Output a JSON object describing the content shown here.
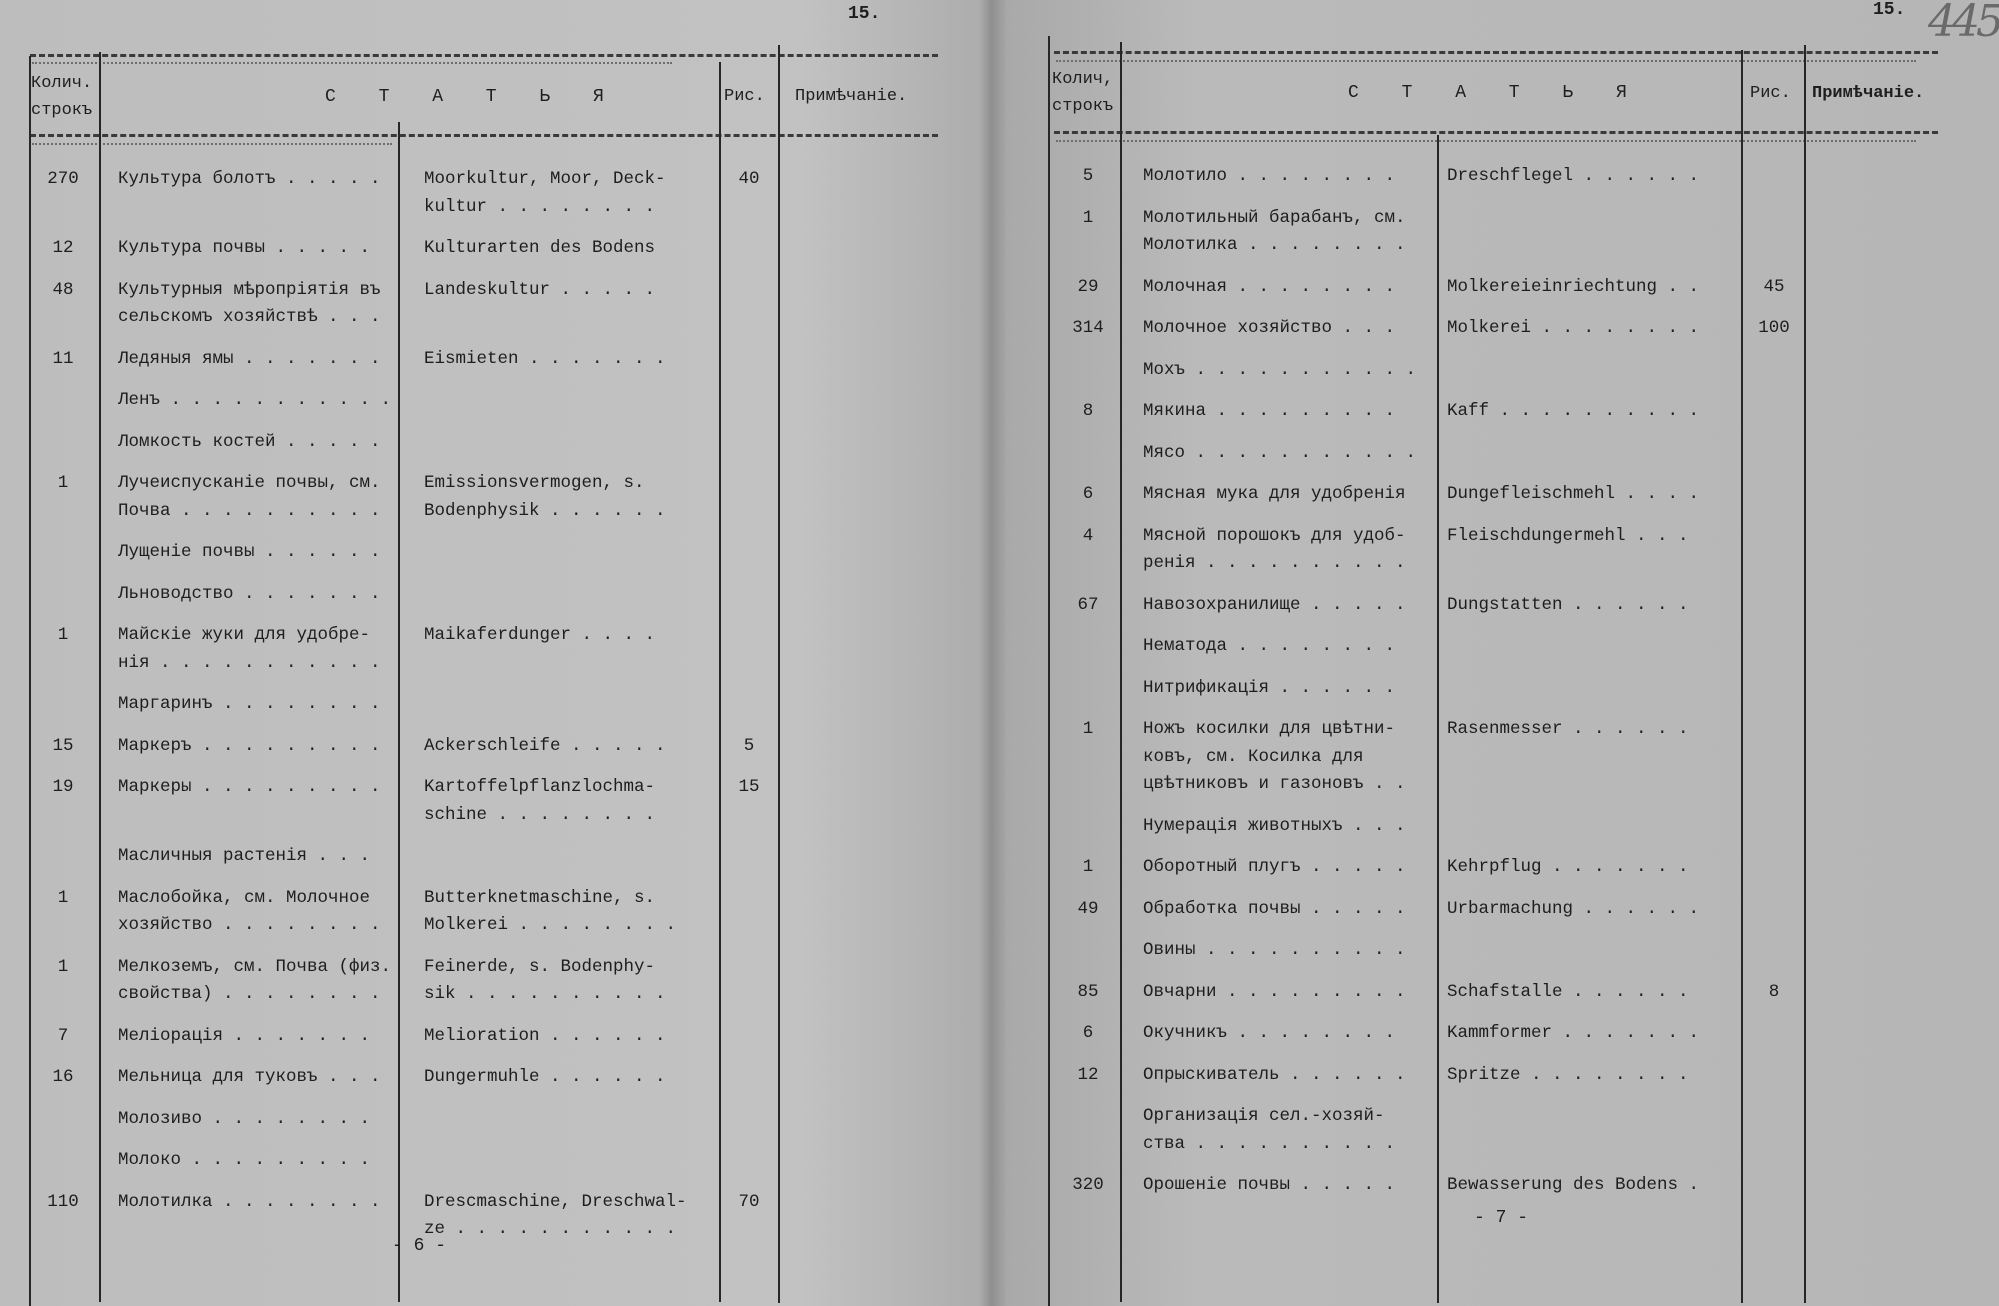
{
  "left_page": {
    "page_number": "15.",
    "footer": "- 6 -",
    "header": {
      "qty": "Колич.",
      "qty2": "строкъ",
      "article": "С Т А Т Ь Я",
      "fig": "Рис.",
      "note": "Примѣчаніе."
    },
    "rows": [
      {
        "qty": "270",
        "ru": "Культура болотъ . . . . .",
        "de": "Moorkultur, Moor, Deck-\nkultur . . . . . . . .",
        "fig": "40"
      },
      {
        "qty": "12",
        "ru": "Культура почвы . . . . .",
        "de": "Kulturarten des Bodens",
        "fig": ""
      },
      {
        "qty": "48",
        "ru": "Культурныя мѣропріятія въ\nсельскомъ хозяйствѣ . . .",
        "de": "Landeskultur . . . . .",
        "fig": ""
      },
      {
        "qty": "11",
        "ru": "Ледяныя ямы . . . . . . .",
        "de": "Eismieten . . . . . . .",
        "fig": ""
      },
      {
        "qty": "",
        "ru": "Ленъ . . . . . . . . . . .",
        "de": "",
        "fig": ""
      },
      {
        "qty": "",
        "ru": "Ломкость костей . . . . .",
        "de": "",
        "fig": ""
      },
      {
        "qty": "1",
        "ru": "Лучеиспусканіе почвы, см.\nПочва . . . . . . . . . .",
        "de": "Emissionsvermogen, s.\nBodenphysik . . . . . .",
        "fig": ""
      },
      {
        "qty": "",
        "ru": "Лущеніе почвы . . . . . .",
        "de": "",
        "fig": ""
      },
      {
        "qty": "",
        "ru": "Льноводство . . . . . . .",
        "de": "",
        "fig": ""
      },
      {
        "qty": "1",
        "ru": "Майскіе жуки для удобре-\nнія . . . . . . . . . . .",
        "de": "Maikaferdunger . . . .",
        "fig": ""
      },
      {
        "qty": "",
        "ru": "Маргаринъ . . . . . . . .",
        "de": "",
        "fig": ""
      },
      {
        "qty": "15",
        "ru": "Маркеръ . . . . . . . . .",
        "de": "Ackerschleife . . . . .",
        "fig": "5"
      },
      {
        "qty": "19",
        "ru": "Маркеры . . . . . . . . .",
        "de": "Kartoffelpflanzlochma-\nschine . . . . . . . .",
        "fig": "15"
      },
      {
        "qty": "",
        "ru": "Масличныя растенія . . .",
        "de": "",
        "fig": ""
      },
      {
        "qty": "1",
        "ru": "Маслобойка, см. Молочное\nхозяйство . . . . . . . .",
        "de": "Butterknetmaschine, s.\nMolkerei . . . . . . . .",
        "fig": ""
      },
      {
        "qty": "1",
        "ru": "Мелкоземъ, см. Почва (физ.\nсвойства) . . . . . . . .",
        "de": "Feinerde, s. Bodenphy-\nsik . . . . . . . . . .",
        "fig": ""
      },
      {
        "qty": "7",
        "ru": "Меліорація . . . . . . .",
        "de": "Melioration . . . . . .",
        "fig": ""
      },
      {
        "qty": "16",
        "ru": "Мельница для туковъ . . .",
        "de": "Dungermuhle . . . . . .",
        "fig": ""
      },
      {
        "qty": "",
        "ru": "Молозиво . . . . . . . .",
        "de": "",
        "fig": ""
      },
      {
        "qty": "",
        "ru": "Молоко . . . . . . . . .",
        "de": "",
        "fig": ""
      },
      {
        "qty": "110",
        "ru": "Молотилка . . . . . . . .",
        "de": "Drescmaschine, Dreschwal-\nze . . . . . . . . . . .",
        "fig": "70"
      }
    ]
  },
  "right_page": {
    "page_number": "15.",
    "handwritten_number": "445",
    "footer": "- 7 -",
    "header": {
      "qty": "Колич,",
      "qty2": "строкъ",
      "article": "С Т А Т Ь Я",
      "fig": "Рис.",
      "note": "Примѣчаніе."
    },
    "rows": [
      {
        "qty": "5",
        "ru": "Молотило . . . . . . . .",
        "de": "Dreschflegel . . . . . .",
        "fig": ""
      },
      {
        "qty": "1",
        "ru": "Молотильный барабанъ, см.\nМолотилка . . . . . . . .",
        "de": "",
        "fig": ""
      },
      {
        "qty": "29",
        "ru": "Молочная . . . . . . . .",
        "de": "Molkereieinriechtung . .",
        "fig": "45"
      },
      {
        "qty": "314",
        "ru": "Молочное хозяйство . . .",
        "de": "Molkerei . . . . . . . .",
        "fig": "100"
      },
      {
        "qty": "",
        "ru": "Мохъ . . . . . . . . . . .",
        "de": "",
        "fig": ""
      },
      {
        "qty": "8",
        "ru": "Мякина . . . . . . . . .",
        "de": "Kaff . . . . . . . . . .",
        "fig": ""
      },
      {
        "qty": "",
        "ru": "Мясо . . . . . . . . . . .",
        "de": "",
        "fig": ""
      },
      {
        "qty": "6",
        "ru": "Мясная мука для удобренія",
        "de": "Dungefleischmehl . . . .",
        "fig": ""
      },
      {
        "qty": "4",
        "ru": "Мясной порошокъ для удоб-\nренія . . . . . . . . . .",
        "de": "Fleischdungermehl . . .",
        "fig": ""
      },
      {
        "qty": "67",
        "ru": "Навозохранилище . . . . .",
        "de": "Dungstatten . . . . . .",
        "fig": ""
      },
      {
        "qty": "",
        "ru": "Нематода . . . . . . . .",
        "de": "",
        "fig": ""
      },
      {
        "qty": "",
        "ru": "Нитрификація . . . . . .",
        "de": "",
        "fig": ""
      },
      {
        "qty": "1",
        "ru": "Ножъ косилки для цвѣтни-\nковъ, см. Косилка для\nцвѣтниковъ и газоновъ . .",
        "de": "Rasenmesser . . . . . .",
        "fig": ""
      },
      {
        "qty": "",
        "ru": "Нумерація животныхъ . . .",
        "de": "",
        "fig": ""
      },
      {
        "qty": "1",
        "ru": "Оборотный плугъ . . . . .",
        "de": "Kehrpflug . . . . . . .",
        "fig": ""
      },
      {
        "qty": "49",
        "ru": "Обработка почвы . . . . .",
        "de": "Urbarmachung . . . . . .",
        "fig": ""
      },
      {
        "qty": "",
        "ru": "Овины . . . . . . . . . .",
        "de": "",
        "fig": ""
      },
      {
        "qty": "85",
        "ru": "Овчарни . . . . . . . . .",
        "de": "Schafstalle . . . . . .",
        "fig": "8"
      },
      {
        "qty": "6",
        "ru": "Окучникъ . . . . . . . .",
        "de": "Kammformer . . . . . . .",
        "fig": ""
      },
      {
        "qty": "12",
        "ru": "Опрыскиватель . . . . . .",
        "de": "Spritze . . . . . . . .",
        "fig": ""
      },
      {
        "qty": "",
        "ru": "Организація сел.-хозяй-\nства . . . . . . . . . .",
        "de": "",
        "fig": ""
      },
      {
        "qty": "320",
        "ru": "Орошеніе почвы . . . . .",
        "de": "Bewasserung des Bodens .",
        "fig": ""
      }
    ]
  }
}
